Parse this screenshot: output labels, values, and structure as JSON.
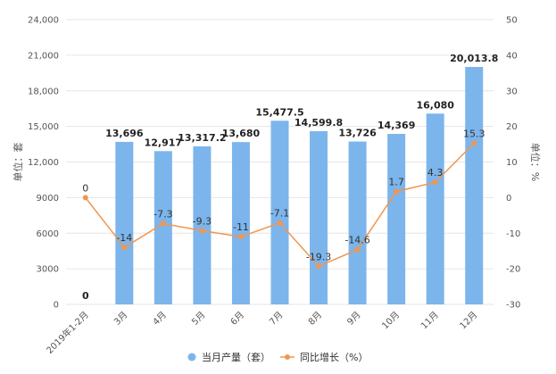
{
  "chart_data": {
    "type": "bar",
    "categories": [
      "2019年1-2月",
      "3月",
      "4月",
      "5月",
      "6月",
      "7月",
      "8月",
      "9月",
      "10月",
      "11月",
      "12月"
    ],
    "series": [
      {
        "name": "当月产量（套）",
        "type": "bar",
        "axis": "left",
        "values": [
          0,
          13696,
          12917,
          13317.2,
          13680,
          15477.5,
          14599.8,
          13726,
          14369,
          16080,
          20013.8
        ],
        "labels": [
          "0",
          "13,696",
          "12,917",
          "13,317.2",
          "13,680",
          "15,477.5",
          "14,599.8",
          "13,726",
          "14,369",
          "16,080",
          "20,013.8"
        ]
      },
      {
        "name": "同比增长（%）",
        "type": "line",
        "axis": "right",
        "values": [
          0,
          -14,
          -7.3,
          -9.3,
          -11,
          -7.1,
          -19.3,
          -14.6,
          1.7,
          4.3,
          15.3
        ],
        "labels": [
          "0",
          "-14",
          "-7.3",
          "-9.3",
          "-11",
          "-7.1",
          "-19.3",
          "-14.6",
          "1.7",
          "4.3",
          "15.3"
        ]
      }
    ],
    "ylabel": "单位：套",
    "y2label": "单位：%",
    "ylim": [
      0,
      24000
    ],
    "y2lim": [
      -30,
      50
    ],
    "yticks": [
      "0",
      "3000",
      "6000",
      "9000",
      "12,000",
      "15,000",
      "18,000",
      "21,000",
      "24,000"
    ],
    "y2ticks": [
      "-30",
      "-20",
      "-10",
      "0",
      "10",
      "20",
      "30",
      "40",
      "50"
    ],
    "grid": true,
    "legend": "bottom-center",
    "colors": {
      "bar": "#7cb5ec",
      "line": "#f0964f",
      "grid": "#e6e6e6"
    }
  }
}
